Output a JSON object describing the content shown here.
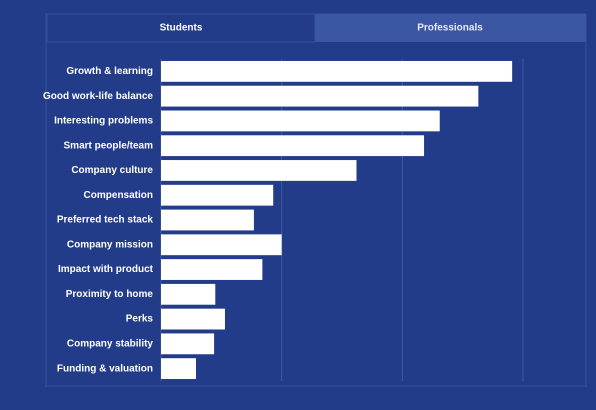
{
  "tabs": [
    "Students",
    "Professionals"
  ],
  "chart_data": {
    "type": "hbar",
    "categories": [
      "Growth & learning",
      "Good work-life balance",
      "Interesting problems",
      "Smart people/team",
      "Company culture",
      "Compensation",
      "Preferred tech stack",
      "Company mission",
      "Impact with product",
      "Proximity to home",
      "Perks",
      "Company stability",
      "Funding & valuation"
    ],
    "values": [
      2.91,
      2.63,
      2.31,
      2.18,
      1.62,
      0.93,
      0.77,
      1.0,
      0.84,
      0.45,
      0.53,
      0.44,
      0.29
    ],
    "color": "#ffffff",
    "xlim": [
      0,
      3
    ],
    "xticks": [
      1,
      2,
      3
    ],
    "grid": true
  }
}
